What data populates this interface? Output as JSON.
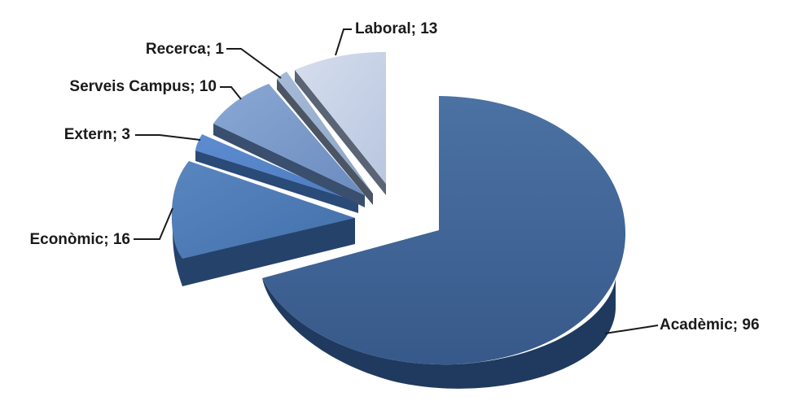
{
  "chart_data": {
    "type": "pie",
    "title": "",
    "style": "3d-exploded",
    "slices": [
      {
        "name": "Acadèmic",
        "value": 96,
        "label": "Acadèmic; 96",
        "color": "#3a5f8c"
      },
      {
        "name": "Econòmic",
        "value": 16,
        "label": "Econòmic; 16",
        "color": "#4a73aa"
      },
      {
        "name": "Extern",
        "value": 3,
        "label": "Extern; 3",
        "color": "#4d7cc0"
      },
      {
        "name": "Serveis Campus",
        "value": 10,
        "label": "Serveis Campus; 10",
        "color": "#7596c4"
      },
      {
        "name": "Recerca",
        "value": 1,
        "label": "Recerca; 1",
        "color": "#8da6c8"
      },
      {
        "name": "Laboral",
        "value": 13,
        "label": "Laboral; 13",
        "color": "#c3cfe4"
      }
    ]
  }
}
